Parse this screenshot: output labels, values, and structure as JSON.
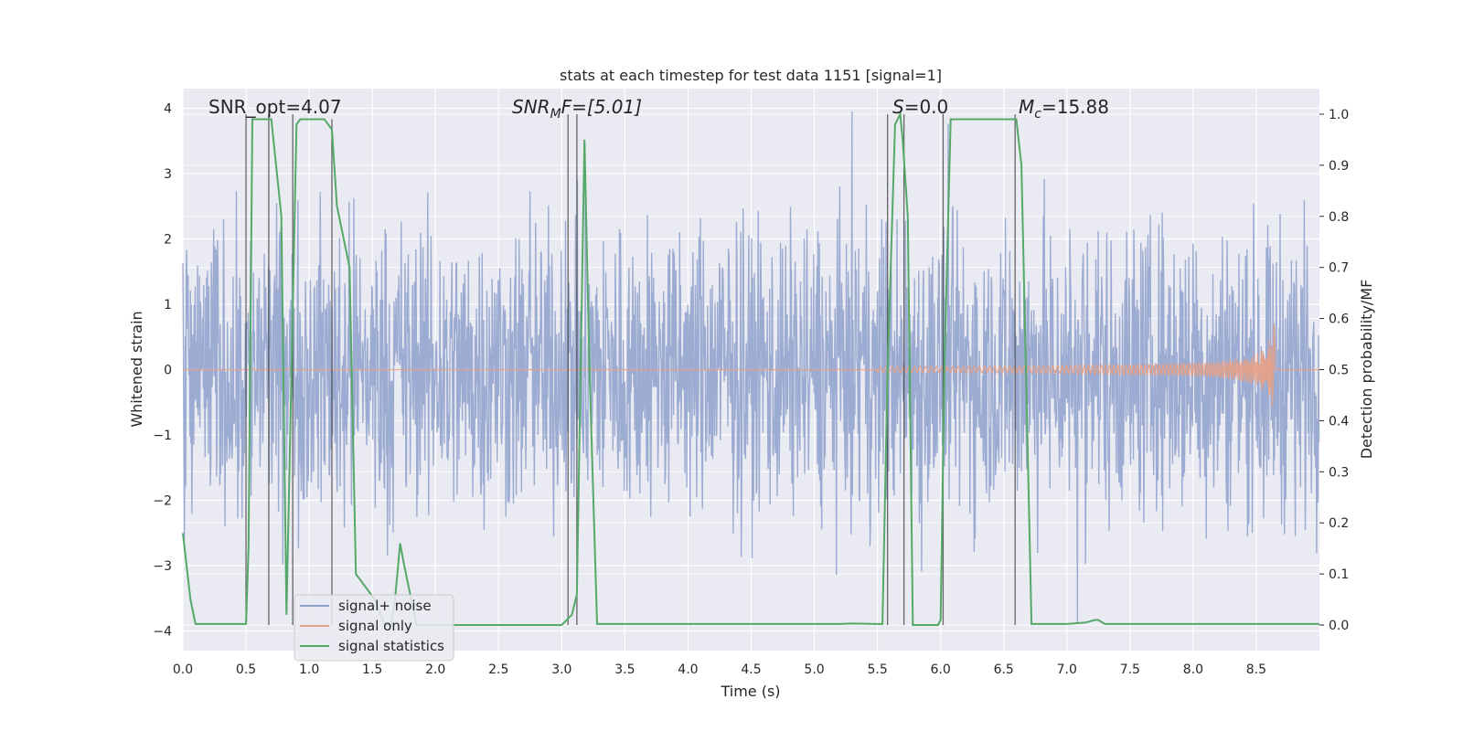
{
  "chart_data": {
    "type": "line",
    "title": "stats at each timestep for test data 1151 [signal=1]",
    "xlabel": "Time (s)",
    "ylabel": "Whitened strain",
    "ylabel_right": "Detection probability/MF",
    "xlim": [
      0.0,
      9.0
    ],
    "ylim": [
      -4.3,
      4.3
    ],
    "ylim_right": [
      -0.05,
      1.05
    ],
    "grid": true,
    "x_ticks": [
      "0.0",
      "0.5",
      "1.0",
      "1.5",
      "2.0",
      "2.5",
      "3.0",
      "3.5",
      "4.0",
      "4.5",
      "5.0",
      "5.5",
      "6.0",
      "6.5",
      "7.0",
      "7.5",
      "8.0",
      "8.5"
    ],
    "y_ticks": [
      "−4",
      "−3",
      "−2",
      "−1",
      "0",
      "1",
      "2",
      "3",
      "4"
    ],
    "y_ticks_right": [
      "0.0",
      "0.1",
      "0.2",
      "0.3",
      "0.4",
      "0.5",
      "0.6",
      "0.7",
      "0.8",
      "0.9",
      "1.0"
    ],
    "legend": {
      "position": "lower-left",
      "entries": [
        "signal+ noise",
        "signal only",
        "signal statistics"
      ]
    },
    "annotations": {
      "snr_opt": "SNR_opt=4.07",
      "snr_mf_base": "SNR",
      "snr_mf_sub": "M",
      "snr_mf_tail": "F=[5.01]",
      "s_base": "S",
      "s_tail": "=0.0",
      "mc_base": "M",
      "mc_sub": "c",
      "mc_tail": "=15.88"
    },
    "series": [
      {
        "name": "signal+ noise",
        "color": "#8da0cb",
        "axis": "left",
        "noise_envelope": {
          "typical_abs": 2.0,
          "max": 3.95,
          "min": -4.0
        }
      },
      {
        "name": "signal only",
        "color": "#e8a085",
        "axis": "left",
        "chirp": {
          "start": 5.5,
          "end": 8.65,
          "peak_amplitude": 0.9
        }
      },
      {
        "name": "signal statistics",
        "color": "#55a868",
        "axis": "right",
        "x": [
          0.0,
          0.06,
          0.1,
          0.45,
          0.5,
          0.52,
          0.55,
          0.6,
          0.7,
          0.73,
          0.78,
          0.82,
          0.86,
          0.9,
          0.93,
          0.97,
          1.12,
          1.18,
          1.22,
          1.32,
          1.37,
          1.52,
          1.6,
          1.65,
          1.68,
          1.72,
          1.75,
          1.8,
          1.85,
          3.0,
          3.08,
          3.12,
          3.18,
          3.22,
          3.28,
          4.9,
          5.2,
          5.3,
          5.5,
          5.54,
          5.58,
          5.64,
          5.68,
          5.7,
          5.74,
          5.78,
          5.95,
          5.98,
          6.0,
          6.03,
          6.08,
          6.12,
          6.58,
          6.6,
          6.64,
          6.72,
          7.0,
          7.15,
          7.22,
          7.25,
          7.3,
          9.0
        ],
        "y": [
          0.18,
          0.05,
          0.002,
          0.002,
          0.002,
          0.15,
          0.99,
          0.99,
          0.99,
          0.92,
          0.8,
          0.02,
          0.5,
          0.98,
          0.99,
          0.99,
          0.99,
          0.97,
          0.82,
          0.7,
          0.1,
          0.05,
          0.0,
          0.0,
          0.05,
          0.16,
          0.12,
          0.06,
          0.0,
          0.0,
          0.02,
          0.06,
          0.95,
          0.5,
          0.002,
          0.002,
          0.002,
          0.003,
          0.002,
          0.002,
          0.5,
          0.98,
          1.0,
          0.95,
          0.8,
          0.0,
          0.0,
          0.0,
          0.01,
          0.5,
          0.99,
          0.99,
          0.99,
          0.99,
          0.9,
          0.002,
          0.002,
          0.005,
          0.01,
          0.01,
          0.002,
          0.002
        ]
      }
    ],
    "vertical_markers": [
      {
        "x": 0.5,
        "y_top": 1.0
      },
      {
        "x": 0.68,
        "y_top": 1.0
      },
      {
        "x": 0.87,
        "y_top": 1.0
      },
      {
        "x": 1.18,
        "y_top": 0.99
      },
      {
        "x": 3.05,
        "y_top": 1.0
      },
      {
        "x": 3.12,
        "y_top": 1.0
      },
      {
        "x": 5.58,
        "y_top": 1.0
      },
      {
        "x": 5.71,
        "y_top": 1.0
      },
      {
        "x": 6.02,
        "y_top": 1.0
      },
      {
        "x": 6.59,
        "y_top": 1.0
      }
    ]
  }
}
